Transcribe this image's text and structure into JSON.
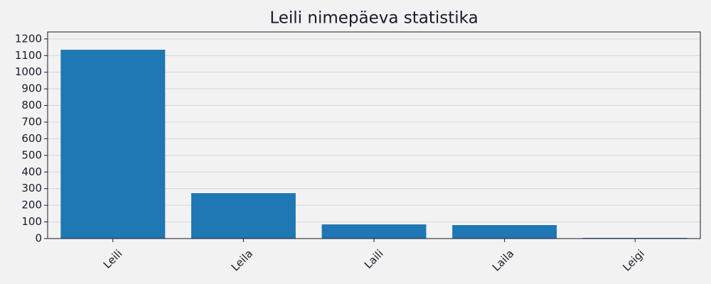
{
  "chart_data": {
    "type": "bar",
    "title": "Leili nimepäeva statistika",
    "categories": [
      "Leili",
      "Leila",
      "Laili",
      "Laila",
      "Leigi"
    ],
    "values": [
      1135,
      273,
      85,
      81,
      4
    ],
    "color": "#1f77b4",
    "ylim": [
      0,
      1242
    ],
    "yticks": [
      0,
      100,
      200,
      300,
      400,
      500,
      600,
      700,
      800,
      900,
      1000,
      1100,
      1200
    ],
    "grid": true
  }
}
